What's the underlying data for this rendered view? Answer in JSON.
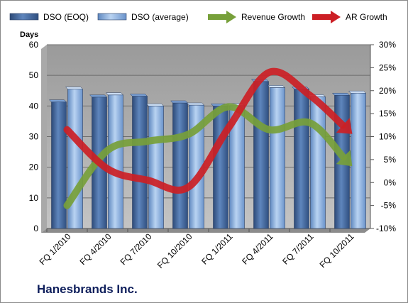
{
  "chart_data": {
    "type": "bar",
    "categories": [
      "FQ 1/2010",
      "FQ 4/2010",
      "FQ 7/2010",
      "FQ 10/2010",
      "FQ 1/2011",
      "FQ 4/2011",
      "FQ 7/2011",
      "FQ 10/2011"
    ],
    "series": [
      {
        "name": "DSO (EOQ)",
        "type": "bar",
        "axis": "left",
        "values": [
          41.3,
          42.9,
          43.2,
          41.0,
          40.0,
          48.0,
          45.5,
          43.5
        ],
        "color": "#4a6fa5"
      },
      {
        "name": "DSO (average)",
        "type": "bar",
        "axis": "left",
        "values": [
          45.5,
          43.6,
          40.0,
          40.3,
          40.1,
          46.0,
          43.0,
          44.2
        ],
        "color": "#8fb4e3"
      },
      {
        "name": "Revenue Growth",
        "type": "line-arrow",
        "axis": "right",
        "values": [
          -5,
          7,
          9,
          10.5,
          16.5,
          11.5,
          13,
          4
        ],
        "color": "#77a03a"
      },
      {
        "name": "AR Growth",
        "type": "line-arrow",
        "axis": "right",
        "values": [
          11.5,
          3,
          0.5,
          -1,
          12,
          24,
          19,
          11
        ],
        "color": "#cc1f25"
      }
    ],
    "ylabel": "Days",
    "ylim": [
      0,
      60
    ],
    "yticks": [
      "0",
      "10",
      "20",
      "30",
      "40",
      "50",
      "60"
    ],
    "y2lim": [
      -10,
      30
    ],
    "y2ticks": [
      "-10%",
      "-5%",
      "0%",
      "5%",
      "10%",
      "15%",
      "20%",
      "25%",
      "30%"
    ],
    "legend_position": "top",
    "grid": true
  },
  "company": "Hanesbrands Inc."
}
